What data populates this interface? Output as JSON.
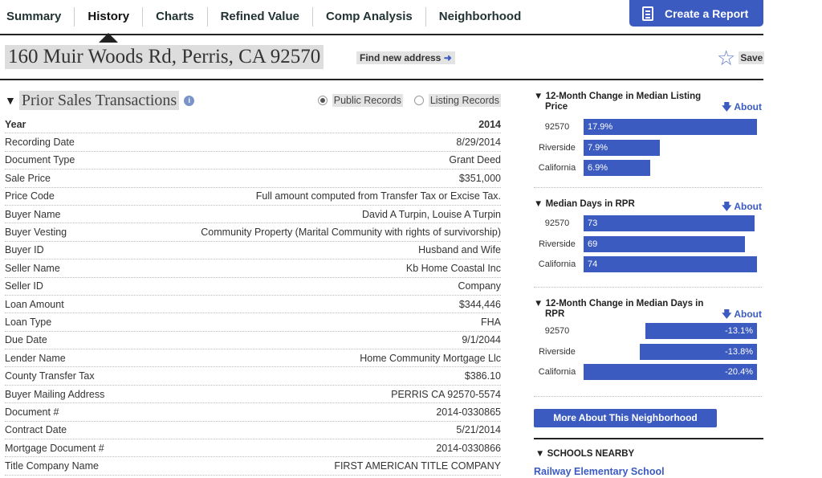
{
  "nav": {
    "tabs": [
      {
        "label": "Summary",
        "active": false
      },
      {
        "label": "History",
        "active": true
      },
      {
        "label": "Charts",
        "active": false
      },
      {
        "label": "Refined Value",
        "active": false
      },
      {
        "label": "Comp Analysis",
        "active": false
      },
      {
        "label": "Neighborhood",
        "active": false
      }
    ],
    "create_report_label": "Create a Report"
  },
  "address": {
    "text": "160 Muir Woods Rd, Perris, CA 92570",
    "find_new_label": "Find new address",
    "save_label": "Save"
  },
  "prior_sales": {
    "title": "Prior Sales Transactions",
    "radio_public": "Public Records",
    "radio_listing": "Listing Records",
    "selected": "Public Records",
    "rows": [
      {
        "label": "Year",
        "value": "2014"
      },
      {
        "label": "Recording Date",
        "value": "8/29/2014"
      },
      {
        "label": "Document Type",
        "value": "Grant Deed"
      },
      {
        "label": "Sale Price",
        "value": "$351,000"
      },
      {
        "label": "Price Code",
        "value": "Full amount computed from Transfer Tax or Excise Tax."
      },
      {
        "label": "Buyer Name",
        "value": "David A Turpin, Louise A Turpin"
      },
      {
        "label": "Buyer Vesting",
        "value": "Community Property (Marital Community with rights of survivorship)"
      },
      {
        "label": "Buyer ID",
        "value": "Husband and Wife"
      },
      {
        "label": "Seller Name",
        "value": "Kb Home Coastal Inc"
      },
      {
        "label": "Seller ID",
        "value": "Company"
      },
      {
        "label": "Loan Amount",
        "value": "$344,446"
      },
      {
        "label": "Loan Type",
        "value": "FHA"
      },
      {
        "label": "Due Date",
        "value": "9/1/2044"
      },
      {
        "label": "Lender Name",
        "value": "Home Community Mortgage Llc"
      },
      {
        "label": "County Transfer Tax",
        "value": "$386.10"
      },
      {
        "label": "Buyer Mailing Address",
        "value": "PERRIS CA 92570-5574"
      },
      {
        "label": "Document #",
        "value": "2014-0330865"
      },
      {
        "label": "Contract Date",
        "value": "5/21/2014"
      },
      {
        "label": "Mortgage Document #",
        "value": "2014-0330866"
      },
      {
        "label": "Title Company Name",
        "value": "FIRST AMERICAN TITLE COMPANY"
      }
    ]
  },
  "neighborhood": {
    "about_label": "About",
    "blocks": [
      {
        "title": "12-Month Change in Median Listing Price",
        "bars": [
          {
            "label": "92570",
            "value": 17.9,
            "text": "17.9%"
          },
          {
            "label": "Riverside",
            "value": 7.9,
            "text": "7.9%"
          },
          {
            "label": "California",
            "value": 6.9,
            "text": "6.9%"
          }
        ]
      },
      {
        "title": "Median Days in RPR",
        "bars": [
          {
            "label": "92570",
            "value": 73,
            "text": "73"
          },
          {
            "label": "Riverside",
            "value": 69,
            "text": "69"
          },
          {
            "label": "California",
            "value": 74,
            "text": "74"
          }
        ]
      },
      {
        "title": "12-Month Change in Median Days in RPR",
        "bars": [
          {
            "label": "92570",
            "value": -13.1,
            "text": "-13.1%"
          },
          {
            "label": "Riverside",
            "value": -13.8,
            "text": "-13.8%"
          },
          {
            "label": "California",
            "value": -20.4,
            "text": "-20.4%"
          }
        ]
      }
    ],
    "more_button_label": "More About This Neighborhood",
    "schools_title": "SCHOOLS NEARBY",
    "school_link": "Railway Elementary School"
  },
  "colors": {
    "accent": "#3b5bc0"
  }
}
